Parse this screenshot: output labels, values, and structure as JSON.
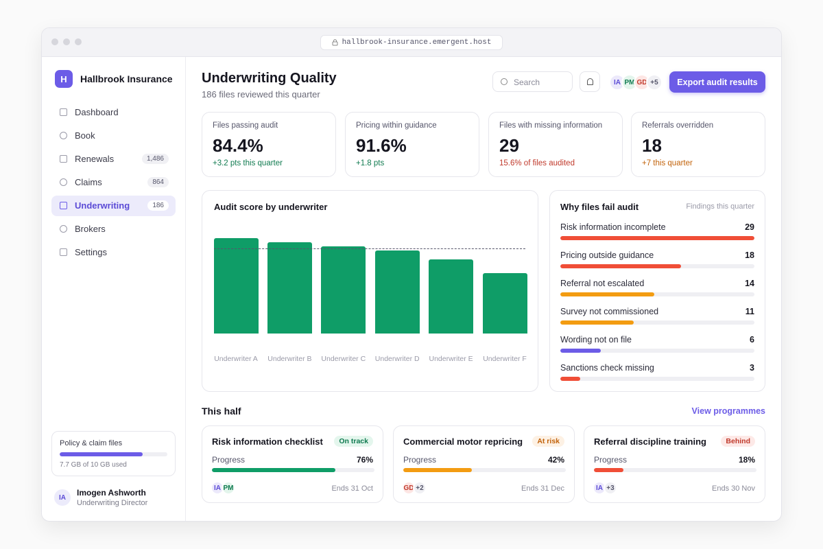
{
  "browser": {
    "url": "hallbrook-insurance.emergent.host"
  },
  "sidebar": {
    "logo": "H",
    "brand": "Hallbrook Insurance",
    "nav": [
      {
        "label": "Dashboard"
      },
      {
        "label": "Book"
      },
      {
        "label": "Renewals",
        "badge": "1,486"
      },
      {
        "label": "Claims",
        "badge": "864"
      },
      {
        "label": "Underwriting",
        "badge": "186",
        "active": true
      },
      {
        "label": "Brokers"
      },
      {
        "label": "Settings"
      }
    ],
    "storage": {
      "title": "Policy & claim files",
      "used": 7.7,
      "capacity": 10,
      "label": "7.7 GB of 10 GB used"
    },
    "user": {
      "initials": "IA",
      "name": "Imogen Ashworth",
      "role": "Underwriting Director"
    }
  },
  "header": {
    "title": "Underwriting Quality",
    "subtitle": "186 files reviewed this quarter",
    "search_placeholder": "Search",
    "avatars": [
      "IA",
      "PM",
      "GD",
      "+5"
    ],
    "button": "Export audit results"
  },
  "kpis": [
    {
      "label": "Files passing audit",
      "value": "84.4%",
      "delta": "+3.2 pts this quarter",
      "tone": "good"
    },
    {
      "label": "Pricing within guidance",
      "value": "91.6%",
      "delta": "+1.8 pts",
      "tone": "good"
    },
    {
      "label": "Files with missing information",
      "value": "29",
      "delta": "15.6% of files audited",
      "tone": "bad"
    },
    {
      "label": "Referrals overridden",
      "value": "18",
      "delta": "+7 this quarter",
      "tone": "warn"
    }
  ],
  "chart_data": {
    "type": "bar",
    "title": "Audit score by underwriter",
    "categories": [
      "Underwriter A",
      "Underwriter B",
      "Underwriter C",
      "Underwriter D",
      "Underwriter E",
      "Underwriter F"
    ],
    "values": [
      93,
      89,
      85,
      81,
      72,
      59
    ],
    "target": 83,
    "ylim": [
      0,
      100
    ],
    "color": "#0f9d67"
  },
  "failures": {
    "title": "Why files fail audit",
    "subtitle": "Findings this quarter",
    "items": [
      {
        "label": "Risk information incomplete",
        "count": 29,
        "color": "#f04e37"
      },
      {
        "label": "Pricing outside guidance",
        "count": 18,
        "color": "#f04e37"
      },
      {
        "label": "Referral not escalated",
        "count": 14,
        "color": "#f39c12"
      },
      {
        "label": "Survey not commissioned",
        "count": 11,
        "color": "#f39c12"
      },
      {
        "label": "Wording not on file",
        "count": 6,
        "color": "#6c5ce7"
      },
      {
        "label": "Sanctions check missing",
        "count": 3,
        "color": "#f04e37"
      }
    ]
  },
  "programmes": {
    "title": "This half",
    "link": "View programmes",
    "items": [
      {
        "name": "Risk information checklist",
        "status": "On track",
        "tone": "good",
        "progress_label": "Progress",
        "progress": {
          "value": 76,
          "label": "76%"
        },
        "color": "#0f9d67",
        "avatars": [
          "IA",
          "PM"
        ],
        "ends": "Ends 31 Oct"
      },
      {
        "name": "Commercial motor repricing",
        "status": "At risk",
        "tone": "warn",
        "progress_label": "Progress",
        "progress": {
          "value": 42,
          "label": "42%"
        },
        "color": "#f39c12",
        "avatars": [
          "GD",
          "+2"
        ],
        "ends": "Ends 31 Dec"
      },
      {
        "name": "Referral discipline training",
        "status": "Behind",
        "tone": "bad",
        "progress_label": "Progress",
        "progress": {
          "value": 18,
          "label": "18%"
        },
        "color": "#f04e37",
        "avatars": [
          "IA",
          "+3"
        ],
        "ends": "Ends 30 Nov"
      }
    ]
  }
}
